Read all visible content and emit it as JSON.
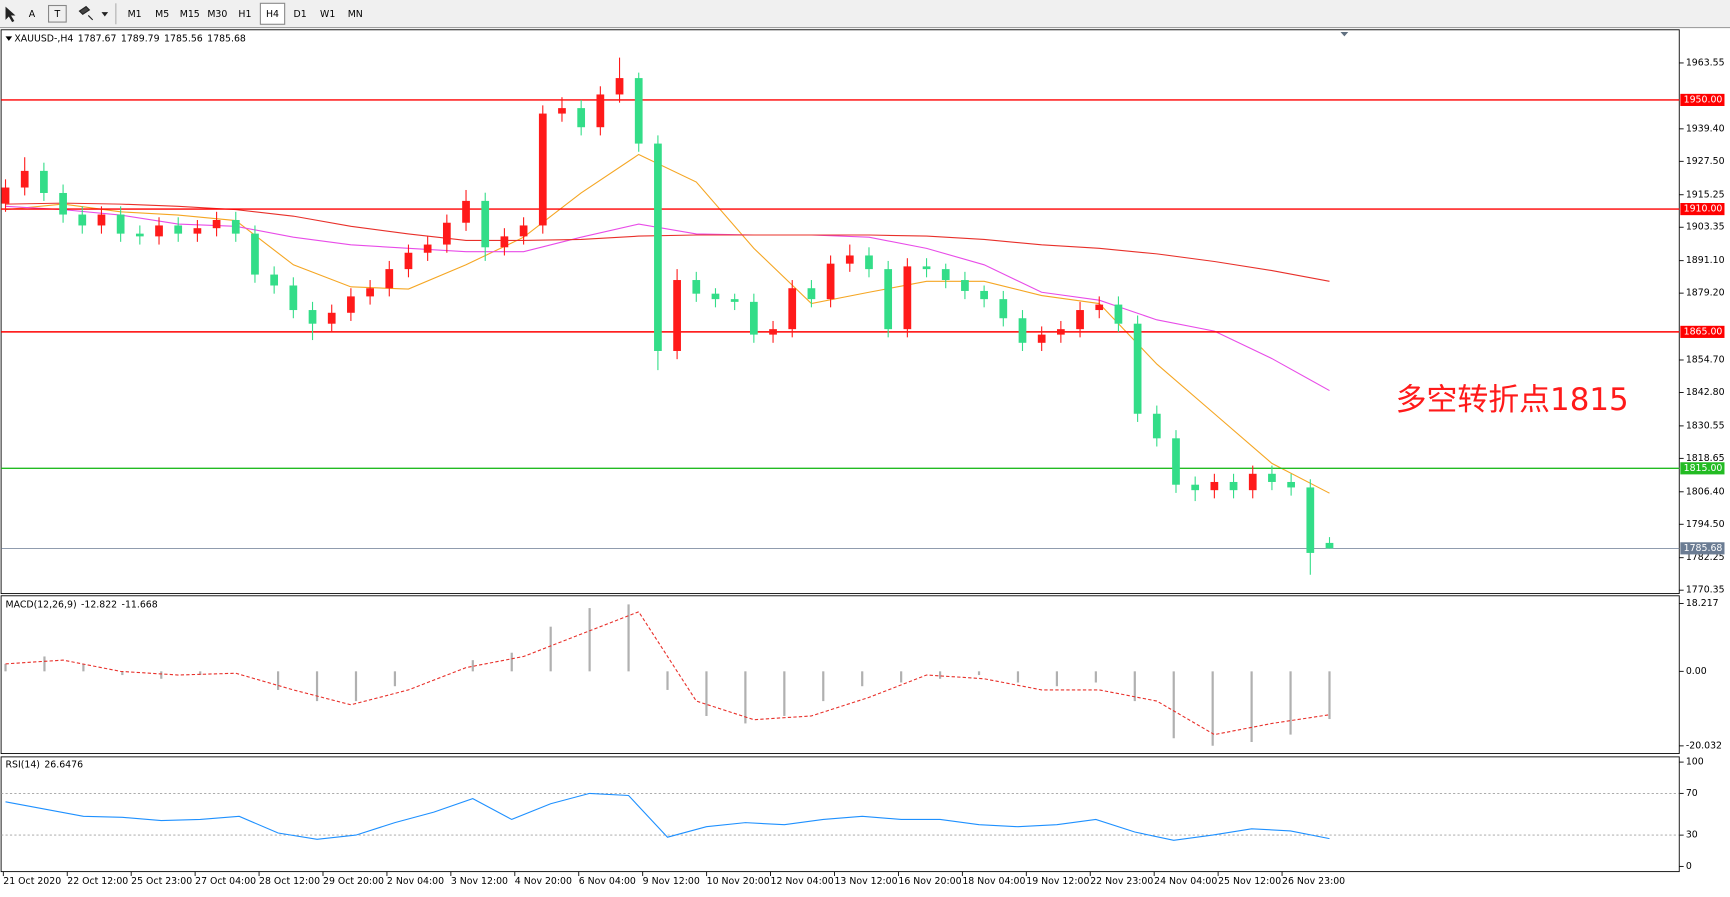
{
  "toolbar": {
    "tools": [
      "A"
    ],
    "timeframes": [
      "M1",
      "M5",
      "M15",
      "M30",
      "H1",
      "H4",
      "D1",
      "W1",
      "MN"
    ],
    "active_timeframe": "H4"
  },
  "chart_data": [
    {
      "type": "candlestick",
      "symbol": "XAUUSD-,H4",
      "up_color": "#ff1a1a",
      "down_color": "#33dd88",
      "open": [
        1912,
        1917.9,
        1924,
        1915.9,
        1908,
        1904,
        1908,
        1901,
        1900,
        1904,
        1901,
        1903,
        1906,
        1901,
        1886,
        1882,
        1873,
        1868,
        1872,
        1878,
        1881,
        1888,
        1894,
        1897,
        1905,
        1913,
        1896,
        1900,
        1904,
        1945,
        1947,
        1940,
        1952,
        1958,
        1934,
        1858,
        1884,
        1879,
        1877,
        1876,
        1864,
        1866,
        1881,
        1877,
        1890,
        1893,
        1888,
        1866,
        1889,
        1888,
        1884,
        1880,
        1877,
        1870,
        1861,
        1864,
        1866,
        1873,
        1875,
        1868,
        1835,
        1826,
        1809,
        1807,
        1810,
        1807,
        1813,
        1810,
        1808,
        1787.67
      ],
      "high": [
        1920.9,
        1929,
        1927,
        1919,
        1911,
        1911,
        1911,
        1904,
        1907,
        1907,
        1906,
        1909,
        1909,
        1904,
        1889,
        1885,
        1876,
        1875,
        1881,
        1884,
        1891,
        1897,
        1900,
        1908,
        1917,
        1916,
        1903,
        1907,
        1948,
        1951,
        1950,
        1955,
        1965.5,
        1960,
        1937,
        1888,
        1887,
        1881,
        1879,
        1879,
        1869,
        1884,
        1884,
        1893,
        1897,
        1896,
        1891,
        1892,
        1892,
        1890,
        1887,
        1882,
        1880,
        1873,
        1867,
        1869,
        1876,
        1878,
        1878,
        1871,
        1838,
        1829,
        1812,
        1813,
        1813,
        1816,
        1816,
        1813,
        1811,
        1789.79
      ],
      "low": [
        1909,
        1915,
        1913,
        1905,
        1901,
        1901,
        1898,
        1897,
        1897,
        1898,
        1898,
        1900,
        1898,
        1883,
        1879,
        1870,
        1862,
        1865,
        1869,
        1875,
        1878,
        1885,
        1891,
        1894,
        1902,
        1891,
        1893,
        1897,
        1901,
        1942,
        1937,
        1937,
        1949,
        1931,
        1851,
        1855,
        1876,
        1874,
        1873,
        1861,
        1861,
        1863,
        1874,
        1874,
        1887,
        1885,
        1863,
        1863,
        1885,
        1881,
        1877,
        1874,
        1867,
        1858,
        1858,
        1861,
        1863,
        1870,
        1865,
        1832,
        1823,
        1806,
        1803,
        1804,
        1804,
        1804,
        1807,
        1805,
        1776,
        1785.56
      ],
      "close": [
        1917.9,
        1924,
        1915.9,
        1908,
        1904,
        1908,
        1901,
        1900,
        1904,
        1901,
        1903,
        1906,
        1901,
        1886,
        1882,
        1873,
        1868,
        1872,
        1878,
        1881,
        1888,
        1894,
        1897,
        1905,
        1913,
        1896,
        1900,
        1904,
        1945,
        1947,
        1940,
        1952,
        1958,
        1934,
        1858,
        1884,
        1879,
        1877,
        1876,
        1864,
        1866,
        1881,
        1877,
        1890,
        1893,
        1888,
        1866,
        1889,
        1888,
        1884,
        1880,
        1877,
        1870,
        1861,
        1864,
        1866,
        1873,
        1875,
        1868,
        1835,
        1826,
        1809,
        1807,
        1810,
        1807,
        1813,
        1810,
        1808,
        1784,
        1785.68
      ],
      "series": [
        {
          "color": "#f5a623",
          "values": [
            1909.8,
            1911.8,
            1909,
            1907.8,
            1905.8,
            1889.6,
            1881.5,
            1880.7,
            1889.6,
            1899.7,
            1915.9,
            1930,
            1919.9,
            1895.6,
            1875.4,
            1879.5,
            1883.5,
            1883.5,
            1878.3,
            1875.4,
            1853.2,
            1835,
            1816.8,
            1805.9
          ]
        },
        {
          "color": "#e84ce8",
          "values": [
            1911,
            1909.8,
            1907.8,
            1904.5,
            1903.7,
            1899.7,
            1896.9,
            1895.6,
            1894.4,
            1894.4,
            1899.7,
            1904.5,
            1900.9,
            1900.5,
            1900.5,
            1899.7,
            1895.6,
            1889.6,
            1879.5,
            1876.6,
            1869.4,
            1865.3,
            1855.2,
            1843.5
          ]
        },
        {
          "color": "#e8302a",
          "values": [
            1911.8,
            1912.2,
            1911.8,
            1911,
            1909.8,
            1907.4,
            1903.7,
            1900.9,
            1898.5,
            1898.5,
            1898.9,
            1900.1,
            1900.5,
            1900.5,
            1900.5,
            1900.5,
            1900.1,
            1898.9,
            1896.9,
            1895.6,
            1893.6,
            1890.8,
            1887.5,
            1883.5
          ]
        }
      ],
      "levels": [
        {
          "value": 1950,
          "label": "1950.00",
          "color": "#ff0000"
        },
        {
          "value": 1910,
          "label": "1910.00",
          "color": "#ff0000"
        },
        {
          "value": 1865,
          "label": "1865.00",
          "color": "#ff0000"
        },
        {
          "value": 1815,
          "label": "1815.00",
          "color": "#22bb22"
        },
        {
          "value": 1785.68,
          "label": "1785.68",
          "color": "#6b7c93"
        }
      ],
      "annotation": "多空转折点1815",
      "annotation_color": "#ff1a1a",
      "ylim": [
        1769.1,
        1975.7
      ],
      "yticks": [
        1963.55,
        {
          "value": 1939.4,
          "label": "1939.40"
        },
        {
          "value": 1927.5,
          "label": "1927.50"
        },
        1915.25,
        1903.35,
        {
          "value": 1891.1,
          "label": "1891.10"
        },
        {
          "value": 1879.2,
          "label": "1879.20"
        },
        {
          "value": 1854.7,
          "label": "1854.70"
        },
        {
          "value": 1842.8,
          "label": "1842.80"
        },
        1830.55,
        1818.65,
        {
          "value": 1806.4,
          "label": "1806.40"
        },
        {
          "value": 1794.5,
          "label": "1794.50"
        },
        1782.25,
        1770.35
      ],
      "x_labels": [
        "21 Oct 2020",
        "22 Oct 12:00",
        "25 Oct 23:00",
        "27 Oct 04:00",
        "28 Oct 12:00",
        "29 Oct 20:00",
        "2 Nov 04:00",
        "3 Nov 12:00",
        "4 Nov 20:00",
        "6 Nov 04:00",
        "9 Nov 12:00",
        "10 Nov 20:00",
        "12 Nov 04:00",
        "13 Nov 12:00",
        "16 Nov 20:00",
        "18 Nov 04:00",
        "19 Nov 12:00",
        "22 Nov 23:00",
        "24 Nov 04:00",
        "25 Nov 12:00",
        "26 Nov 23:00"
      ]
    },
    {
      "type": "macd",
      "label": "MACD(12,26,9)",
      "hist_color": "#b0b0b0",
      "signal_color": "#e8302a",
      "histogram": [
        2,
        4,
        2,
        -1,
        -2,
        -1,
        0,
        -5,
        -8,
        -8,
        -4,
        0,
        3,
        5,
        12,
        17,
        18,
        -5,
        -12,
        -14,
        -12,
        -8,
        -4,
        -3,
        -2,
        -1,
        -3,
        -4,
        -3,
        -8,
        -18,
        -20,
        -19,
        -17,
        -12.822
      ],
      "signal": [
        2,
        3,
        0,
        -1,
        -0.5,
        -5,
        -9,
        -5,
        1,
        4,
        10,
        16,
        -8,
        -13,
        -12,
        -7,
        -1,
        -2,
        -5,
        -5,
        -8,
        -17,
        -14,
        -11.668
      ],
      "ylim": [
        -22.1,
        20.3
      ],
      "yticks": [
        18.217,
        {
          "value": 0,
          "label": "0.00"
        },
        -20.032
      ]
    },
    {
      "type": "rsi",
      "label": "RSI(14)",
      "color": "#1e90ff",
      "values": [
        62,
        55,
        48,
        47,
        44,
        45,
        48,
        32,
        26,
        30,
        42,
        52,
        65,
        45,
        60,
        70,
        68,
        28,
        38,
        42,
        40,
        45,
        48,
        45,
        45,
        40,
        38,
        40,
        45,
        33,
        25,
        30,
        36,
        34,
        26.6476
      ],
      "ylim": [
        -5,
        105
      ],
      "yticks": [
        100,
        70,
        30,
        0
      ]
    }
  ]
}
